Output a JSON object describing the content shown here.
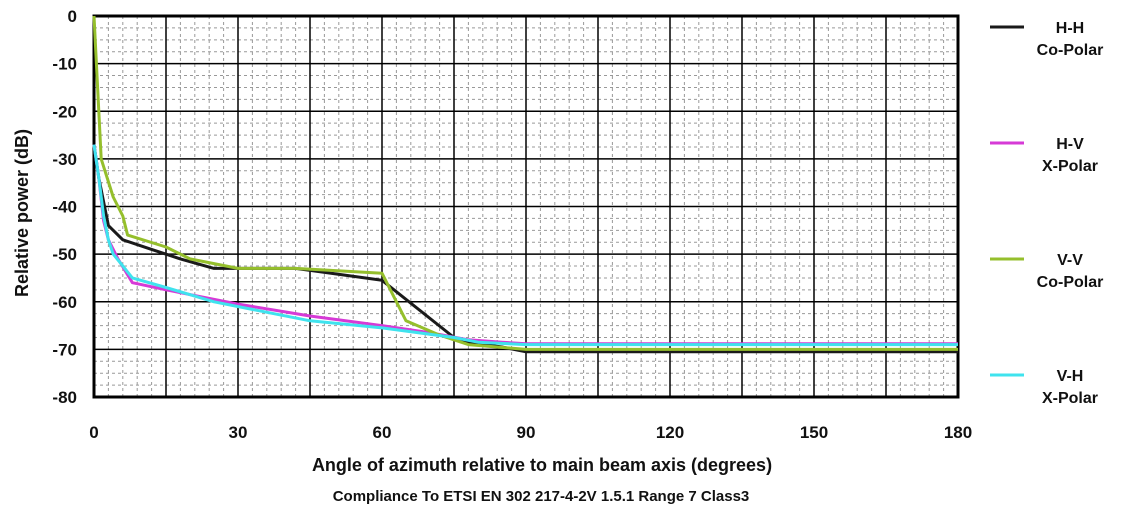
{
  "chart_data": {
    "type": "line",
    "xlabel": "Angle of azimuth relative to main beam axis (degrees)",
    "ylabel": "Relative power (dB)",
    "caption": "Compliance To ETSI EN 302 217-4-2V 1.5.1 Range 7 Class3",
    "xlim": [
      0,
      180
    ],
    "ylim": [
      -80,
      0
    ],
    "x_ticks": [
      "0",
      "30",
      "60",
      "90",
      "120",
      "150",
      "180"
    ],
    "y_ticks": [
      "0",
      "-10",
      "-20",
      "-30",
      "-40",
      "-50",
      "-60",
      "-70",
      "-80"
    ],
    "grid": true,
    "legend_position": "right",
    "series": [
      {
        "name_line1": "H-H",
        "name_line2": "Co-Polar",
        "color": "#1a1a1a",
        "x": [
          0,
          1,
          3,
          6,
          12,
          18,
          25,
          30,
          42,
          60,
          75,
          78,
          85,
          90,
          120,
          150,
          180
        ],
        "y": [
          -27,
          -34,
          -44,
          -47,
          -49,
          -51,
          -53,
          -53,
          -53,
          -55.5,
          -67.5,
          -68.5,
          -69.5,
          -70.5,
          -70.5,
          -70.5,
          -70.5
        ]
      },
      {
        "name_line1": "H-V",
        "name_line2": "X-Polar",
        "color": "#d63ad6",
        "x": [
          0,
          1,
          2,
          3,
          5,
          8,
          15,
          30,
          45,
          60,
          70,
          78,
          85,
          90,
          120,
          150,
          180
        ],
        "y": [
          -27,
          -34,
          -43,
          -47,
          -51,
          -56,
          -57.5,
          -60.5,
          -63,
          -65,
          -66.5,
          -68,
          -68.5,
          -68.8,
          -68.8,
          -68.8,
          -68.8
        ]
      },
      {
        "name_line1": "V-V",
        "name_line2": "Co-Polar",
        "color": "#95bf2c",
        "x": [
          0,
          0.5,
          1.5,
          4,
          6,
          7,
          15,
          20,
          30,
          42,
          60,
          65,
          72,
          78,
          90,
          120,
          150,
          180
        ],
        "y": [
          0,
          -10,
          -30,
          -38,
          -42,
          -46,
          -48.5,
          -51,
          -53,
          -53,
          -54,
          -64,
          -67,
          -69,
          -70,
          -70,
          -70,
          -70
        ]
      },
      {
        "name_line1": "V-H",
        "name_line2": "X-Polar",
        "color": "#3fe3ee",
        "x": [
          0,
          1,
          2,
          3,
          4,
          8,
          15,
          25,
          35,
          45,
          60,
          75,
          80,
          90,
          120,
          150,
          180
        ],
        "y": [
          -27,
          -34,
          -42,
          -47,
          -50,
          -55,
          -57,
          -60,
          -62,
          -64,
          -65.5,
          -67.5,
          -68.5,
          -69,
          -69,
          -69,
          -69
        ]
      }
    ]
  }
}
